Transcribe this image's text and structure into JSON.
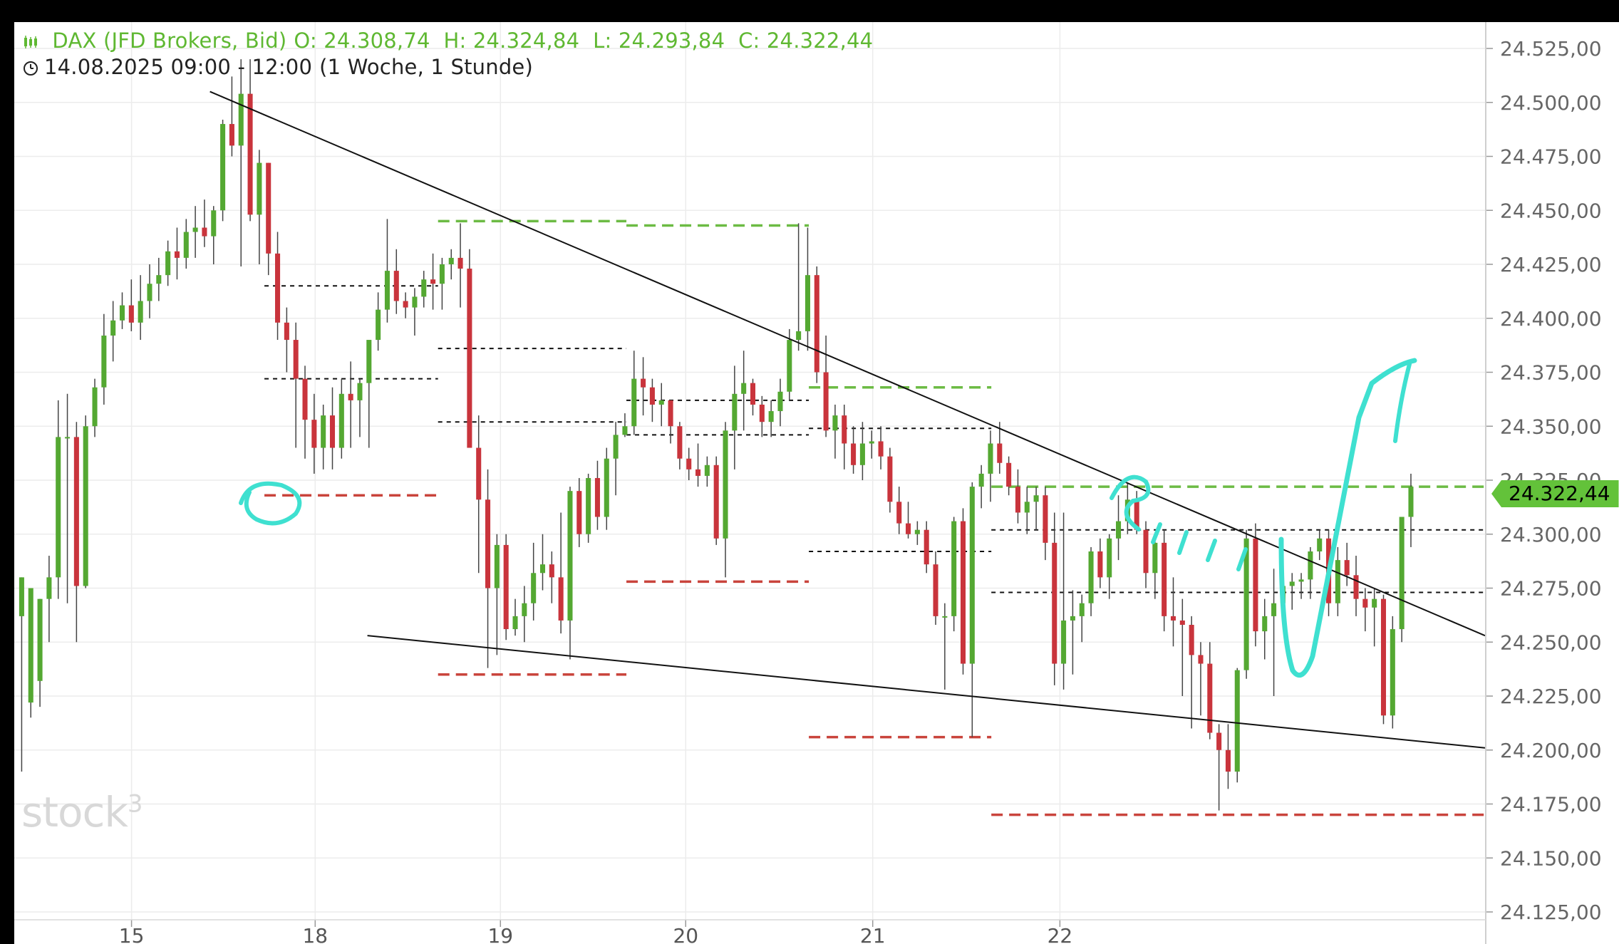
{
  "header": {
    "instrument": "DAX (JFD Brokers, Bid)",
    "ohlc": "O: 24.308,74  H: 24.324,84  L: 24.293,84  C: 24.322,44",
    "period": "14.08.2025 09:00 - 12:00",
    "timeframe": "(1 Woche, 1 Stunde)"
  },
  "watermark": "stock3",
  "last_price_label": "24.322,44",
  "colors": {
    "up": "#54a832",
    "down": "#c9343c",
    "green_level": "#6cbb44",
    "red_level": "#c9443c",
    "annotation": "#3fe0d0",
    "grid": "#ececec",
    "tag": "#63c23a"
  },
  "chart_data": {
    "type": "candlestick",
    "title": "",
    "ylim": [
      24115,
      24540
    ],
    "y_ticks": [
      "24.125,00",
      "24.150,00",
      "24.175,00",
      "24.200,00",
      "24.225,00",
      "24.250,00",
      "24.275,00",
      "24.300,00",
      "24.325,00",
      "24.350,00",
      "24.375,00",
      "24.400,00",
      "24.425,00",
      "24.450,00",
      "24.475,00",
      "24.500,00",
      "24.525,00"
    ],
    "y_tick_values": [
      24125,
      24150,
      24175,
      24200,
      24225,
      24250,
      24275,
      24300,
      24325,
      24350,
      24375,
      24400,
      24425,
      24450,
      24475,
      24500,
      24525
    ],
    "x_day_labels": [
      "15",
      "18",
      "19",
      "20",
      "21",
      "22"
    ],
    "days": [
      {
        "o": 24262,
        "h": 24280,
        "l": 24190,
        "c": 24280
      },
      {
        "o": 24222,
        "h": 24275,
        "l": 24215,
        "c": 24275
      },
      {
        "o": 24232,
        "h": 24270,
        "l": 24220,
        "c": 24270
      },
      {
        "o": 24270,
        "h": 24290,
        "l": 24250,
        "c": 24280
      },
      {
        "o": 24280,
        "h": 24362,
        "l": 24270,
        "c": 24345
      },
      {
        "o": 24345,
        "h": 24365,
        "l": 24268,
        "c": 24345
      },
      {
        "o": 24345,
        "h": 24352,
        "l": 24250,
        "c": 24276
      },
      {
        "o": 24276,
        "h": 24355,
        "l": 24275,
        "c": 24350
      },
      {
        "o": 24350,
        "h": 24372,
        "l": 24345,
        "c": 24368
      },
      {
        "o": 24368,
        "h": 24402,
        "l": 24360,
        "c": 24392
      },
      {
        "o": 24392,
        "h": 24408,
        "l": 24380,
        "c": 24399
      },
      {
        "o": 24399,
        "h": 24412,
        "l": 24395,
        "c": 24406
      },
      {
        "o": 24406,
        "h": 24418,
        "l": 24394,
        "c": 24398
      },
      {
        "o": 24398,
        "h": 24420,
        "l": 24390,
        "c": 24408
      },
      {
        "o": 24408,
        "h": 24425,
        "l": 24400,
        "c": 24416
      },
      {
        "o": 24416,
        "h": 24428,
        "l": 24408,
        "c": 24420
      },
      {
        "o": 24420,
        "h": 24436,
        "l": 24415,
        "c": 24431
      },
      {
        "o": 24431,
        "h": 24442,
        "l": 24418,
        "c": 24428
      },
      {
        "o": 24428,
        "h": 24446,
        "l": 24423,
        "c": 24440
      },
      {
        "o": 24440,
        "h": 24452,
        "l": 24428,
        "c": 24442
      },
      {
        "o": 24442,
        "h": 24455,
        "l": 24433,
        "c": 24438
      },
      {
        "o": 24438,
        "h": 24452,
        "l": 24425,
        "c": 24450
      },
      {
        "o": 24450,
        "h": 24492,
        "l": 24445,
        "c": 24490
      },
      {
        "o": 24490,
        "h": 24512,
        "l": 24475,
        "c": 24480
      },
      {
        "o": 24480,
        "h": 24520,
        "l": 24424,
        "c": 24504
      },
      {
        "o": 24504,
        "h": 24520,
        "l": 24445,
        "c": 24448
      },
      {
        "o": 24448,
        "h": 24478,
        "l": 24425,
        "c": 24472
      },
      {
        "o": 24472,
        "h": 24472,
        "l": 24420,
        "c": 24430
      },
      {
        "o": 24430,
        "h": 24440,
        "l": 24390,
        "c": 24398
      },
      {
        "o": 24398,
        "h": 24405,
        "l": 24375,
        "c": 24390
      },
      {
        "o": 24390,
        "h": 24398,
        "l": 24340,
        "c": 24372
      },
      {
        "o": 24372,
        "h": 24378,
        "l": 24335,
        "c": 24353
      },
      {
        "o": 24353,
        "h": 24365,
        "l": 24328,
        "c": 24340
      },
      {
        "o": 24340,
        "h": 24360,
        "l": 24330,
        "c": 24355
      },
      {
        "o": 24355,
        "h": 24368,
        "l": 24330,
        "c": 24340
      },
      {
        "o": 24340,
        "h": 24372,
        "l": 24335,
        "c": 24365
      },
      {
        "o": 24365,
        "h": 24380,
        "l": 24340,
        "c": 24362
      },
      {
        "o": 24362,
        "h": 24372,
        "l": 24345,
        "c": 24370
      },
      {
        "o": 24370,
        "h": 24372,
        "l": 24340,
        "c": 24390
      },
      {
        "o": 24390,
        "h": 24412,
        "l": 24385,
        "c": 24404
      },
      {
        "o": 24404,
        "h": 24446,
        "l": 24398,
        "c": 24422
      },
      {
        "o": 24422,
        "h": 24432,
        "l": 24402,
        "c": 24408
      },
      {
        "o": 24408,
        "h": 24412,
        "l": 24400,
        "c": 24405
      },
      {
        "o": 24405,
        "h": 24414,
        "l": 24392,
        "c": 24410
      },
      {
        "o": 24410,
        "h": 24422,
        "l": 24405,
        "c": 24418
      },
      {
        "o": 24418,
        "h": 24430,
        "l": 24404,
        "c": 24416
      },
      {
        "o": 24416,
        "h": 24428,
        "l": 24404,
        "c": 24425
      },
      {
        "o": 24425,
        "h": 24432,
        "l": 24418,
        "c": 24428
      },
      {
        "o": 24428,
        "h": 24444,
        "l": 24405,
        "c": 24423
      },
      {
        "o": 24423,
        "h": 24432,
        "l": 24340,
        "c": 24340
      },
      {
        "o": 24340,
        "h": 24355,
        "l": 24282,
        "c": 24316
      },
      {
        "o": 24316,
        "h": 24330,
        "l": 24238,
        "c": 24275
      },
      {
        "o": 24275,
        "h": 24300,
        "l": 24244,
        "c": 24295
      },
      {
        "o": 24295,
        "h": 24300,
        "l": 24251,
        "c": 24256
      },
      {
        "o": 24256,
        "h": 24270,
        "l": 24253,
        "c": 24262
      },
      {
        "o": 24262,
        "h": 24276,
        "l": 24250,
        "c": 24268
      },
      {
        "o": 24268,
        "h": 24296,
        "l": 24260,
        "c": 24282
      },
      {
        "o": 24282,
        "h": 24300,
        "l": 24274,
        "c": 24286
      },
      {
        "o": 24286,
        "h": 24292,
        "l": 24268,
        "c": 24280
      },
      {
        "o": 24280,
        "h": 24310,
        "l": 24254,
        "c": 24260
      },
      {
        "o": 24260,
        "h": 24322,
        "l": 24242,
        "c": 24320
      },
      {
        "o": 24320,
        "h": 24326,
        "l": 24294,
        "c": 24300
      },
      {
        "o": 24300,
        "h": 24328,
        "l": 24296,
        "c": 24326
      },
      {
        "o": 24326,
        "h": 24334,
        "l": 24302,
        "c": 24308
      },
      {
        "o": 24308,
        "h": 24340,
        "l": 24302,
        "c": 24335
      },
      {
        "o": 24335,
        "h": 24352,
        "l": 24318,
        "c": 24346
      },
      {
        "o": 24346,
        "h": 24356,
        "l": 24345,
        "c": 24350
      },
      {
        "o": 24350,
        "h": 24385,
        "l": 24346,
        "c": 24372
      },
      {
        "o": 24372,
        "h": 24382,
        "l": 24355,
        "c": 24368
      },
      {
        "o": 24368,
        "h": 24372,
        "l": 24352,
        "c": 24360
      },
      {
        "o": 24360,
        "h": 24370,
        "l": 24350,
        "c": 24362
      },
      {
        "o": 24362,
        "h": 24362,
        "l": 24342,
        "c": 24350
      },
      {
        "o": 24350,
        "h": 24352,
        "l": 24330,
        "c": 24335
      },
      {
        "o": 24335,
        "h": 24340,
        "l": 24325,
        "c": 24330
      },
      {
        "o": 24330,
        "h": 24342,
        "l": 24322,
        "c": 24327
      },
      {
        "o": 24327,
        "h": 24336,
        "l": 24322,
        "c": 24332
      },
      {
        "o": 24332,
        "h": 24336,
        "l": 24295,
        "c": 24298
      },
      {
        "o": 24298,
        "h": 24352,
        "l": 24280,
        "c": 24348
      },
      {
        "o": 24348,
        "h": 24378,
        "l": 24330,
        "c": 24365
      },
      {
        "o": 24365,
        "h": 24385,
        "l": 24348,
        "c": 24370
      },
      {
        "o": 24370,
        "h": 24372,
        "l": 24355,
        "c": 24360
      },
      {
        "o": 24360,
        "h": 24364,
        "l": 24345,
        "c": 24352
      },
      {
        "o": 24352,
        "h": 24362,
        "l": 24345,
        "c": 24357
      },
      {
        "o": 24357,
        "h": 24372,
        "l": 24350,
        "c": 24366
      },
      {
        "o": 24366,
        "h": 24395,
        "l": 24362,
        "c": 24390
      },
      {
        "o": 24390,
        "h": 24444,
        "l": 24385,
        "c": 24394
      },
      {
        "o": 24394,
        "h": 24442,
        "l": 24385,
        "c": 24420
      },
      {
        "o": 24420,
        "h": 24424,
        "l": 24370,
        "c": 24375
      },
      {
        "o": 24375,
        "h": 24392,
        "l": 24345,
        "c": 24348
      },
      {
        "o": 24348,
        "h": 24360,
        "l": 24335,
        "c": 24355
      },
      {
        "o": 24355,
        "h": 24360,
        "l": 24330,
        "c": 24342
      },
      {
        "o": 24342,
        "h": 24350,
        "l": 24328,
        "c": 24332
      },
      {
        "o": 24332,
        "h": 24352,
        "l": 24325,
        "c": 24342
      },
      {
        "o": 24342,
        "h": 24348,
        "l": 24335,
        "c": 24343
      },
      {
        "o": 24343,
        "h": 24350,
        "l": 24330,
        "c": 24336
      },
      {
        "o": 24336,
        "h": 24340,
        "l": 24310,
        "c": 24315
      },
      {
        "o": 24315,
        "h": 24322,
        "l": 24300,
        "c": 24305
      },
      {
        "o": 24305,
        "h": 24315,
        "l": 24298,
        "c": 24300
      },
      {
        "o": 24300,
        "h": 24306,
        "l": 24295,
        "c": 24302
      },
      {
        "o": 24302,
        "h": 24306,
        "l": 24282,
        "c": 24286
      },
      {
        "o": 24286,
        "h": 24292,
        "l": 24258,
        "c": 24262
      },
      {
        "o": 24262,
        "h": 24268,
        "l": 24228,
        "c": 24262
      },
      {
        "o": 24262,
        "h": 24308,
        "l": 24255,
        "c": 24306
      },
      {
        "o": 24306,
        "h": 24312,
        "l": 24235,
        "c": 24240
      },
      {
        "o": 24240,
        "h": 24324,
        "l": 24206,
        "c": 24322
      },
      {
        "o": 24322,
        "h": 24332,
        "l": 24312,
        "c": 24328
      },
      {
        "o": 24328,
        "h": 24348,
        "l": 24315,
        "c": 24342
      },
      {
        "o": 24342,
        "h": 24352,
        "l": 24328,
        "c": 24333
      },
      {
        "o": 24333,
        "h": 24336,
        "l": 24318,
        "c": 24322
      },
      {
        "o": 24322,
        "h": 24330,
        "l": 24305,
        "c": 24310
      },
      {
        "o": 24310,
        "h": 24322,
        "l": 24300,
        "c": 24315
      },
      {
        "o": 24315,
        "h": 24322,
        "l": 24302,
        "c": 24318
      },
      {
        "o": 24318,
        "h": 24322,
        "l": 24288,
        "c": 24296
      },
      {
        "o": 24296,
        "h": 24310,
        "l": 24230,
        "c": 24240
      },
      {
        "o": 24240,
        "h": 24310,
        "l": 24228,
        "c": 24260
      },
      {
        "o": 24260,
        "h": 24274,
        "l": 24235,
        "c": 24262
      },
      {
        "o": 24262,
        "h": 24272,
        "l": 24250,
        "c": 24268
      },
      {
        "o": 24268,
        "h": 24294,
        "l": 24262,
        "c": 24292
      },
      {
        "o": 24292,
        "h": 24298,
        "l": 24275,
        "c": 24280
      },
      {
        "o": 24280,
        "h": 24300,
        "l": 24270,
        "c": 24298
      },
      {
        "o": 24298,
        "h": 24318,
        "l": 24288,
        "c": 24306
      },
      {
        "o": 24306,
        "h": 24324,
        "l": 24300,
        "c": 24316
      },
      {
        "o": 24316,
        "h": 24320,
        "l": 24300,
        "c": 24302
      },
      {
        "o": 24302,
        "h": 24306,
        "l": 24275,
        "c": 24282
      },
      {
        "o": 24282,
        "h": 24300,
        "l": 24270,
        "c": 24296
      },
      {
        "o": 24296,
        "h": 24302,
        "l": 24255,
        "c": 24262
      },
      {
        "o": 24262,
        "h": 24280,
        "l": 24248,
        "c": 24260
      },
      {
        "o": 24260,
        "h": 24270,
        "l": 24225,
        "c": 24258
      },
      {
        "o": 24258,
        "h": 24262,
        "l": 24210,
        "c": 24244
      },
      {
        "o": 24244,
        "h": 24250,
        "l": 24216,
        "c": 24240
      },
      {
        "o": 24240,
        "h": 24250,
        "l": 24205,
        "c": 24208
      },
      {
        "o": 24208,
        "h": 24212,
        "l": 24172,
        "c": 24200
      },
      {
        "o": 24200,
        "h": 24212,
        "l": 24182,
        "c": 24190
      },
      {
        "o": 24190,
        "h": 24238,
        "l": 24185,
        "c": 24237
      },
      {
        "o": 24237,
        "h": 24302,
        "l": 24233,
        "c": 24298
      },
      {
        "o": 24298,
        "h": 24305,
        "l": 24248,
        "c": 24255
      },
      {
        "o": 24255,
        "h": 24270,
        "l": 24242,
        "c": 24262
      },
      {
        "o": 24262,
        "h": 24284,
        "l": 24225,
        "c": 24268
      },
      {
        "o": 24268,
        "h": 24280,
        "l": 24260,
        "c": 24276
      },
      {
        "o": 24276,
        "h": 24282,
        "l": 24265,
        "c": 24278
      },
      {
        "o": 24278,
        "h": 24282,
        "l": 24270,
        "c": 24279
      },
      {
        "o": 24279,
        "h": 24294,
        "l": 24270,
        "c": 24292
      },
      {
        "o": 24292,
        "h": 24302,
        "l": 24288,
        "c": 24298
      },
      {
        "o": 24298,
        "h": 24302,
        "l": 24262,
        "c": 24268
      },
      {
        "o": 24268,
        "h": 24294,
        "l": 24262,
        "c": 24288
      },
      {
        "o": 24288,
        "h": 24296,
        "l": 24276,
        "c": 24281
      },
      {
        "o": 24281,
        "h": 24290,
        "l": 24262,
        "c": 24270
      },
      {
        "o": 24270,
        "h": 24275,
        "l": 24255,
        "c": 24266
      },
      {
        "o": 24266,
        "h": 24275,
        "l": 24248,
        "c": 24270
      },
      {
        "o": 24270,
        "h": 24272,
        "l": 24212,
        "c": 24216
      },
      {
        "o": 24216,
        "h": 24262,
        "l": 24210,
        "c": 24256
      },
      {
        "o": 24256,
        "h": 24295,
        "l": 24250,
        "c": 24308
      },
      {
        "o": 24308,
        "h": 24328,
        "l": 24294,
        "c": 24322
      }
    ],
    "trend_lines": [
      {
        "t0": 0.133,
        "p0": 24505,
        "t1": 0.9995,
        "p1": 24253
      },
      {
        "t0": 0.24,
        "p0": 24253,
        "t1": 0.9995,
        "p1": 24201
      }
    ],
    "levels": [
      {
        "kind": "resistance",
        "t0": 0.288,
        "t1": 0.416,
        "price": 24445
      },
      {
        "kind": "resistance",
        "t0": 0.416,
        "t1": 0.54,
        "price": 24443
      },
      {
        "kind": "resistance",
        "t0": 0.54,
        "t1": 0.664,
        "price": 24368
      },
      {
        "kind": "resistance",
        "t0": 0.664,
        "t1": 0.9995,
        "price": 24322
      },
      {
        "kind": "support",
        "t0": 0.17,
        "t1": 0.288,
        "price": 24318
      },
      {
        "kind": "support",
        "t0": 0.288,
        "t1": 0.416,
        "price": 24235
      },
      {
        "kind": "support",
        "t0": 0.416,
        "t1": 0.54,
        "price": 24278
      },
      {
        "kind": "support",
        "t0": 0.54,
        "t1": 0.664,
        "price": 24206
      },
      {
        "kind": "support",
        "t0": 0.664,
        "t1": 0.9995,
        "price": 24170
      },
      {
        "kind": "pivot",
        "t0": 0.17,
        "t1": 0.288,
        "price": 24415
      },
      {
        "kind": "pivot",
        "t0": 0.17,
        "t1": 0.288,
        "price": 24372
      },
      {
        "kind": "pivot",
        "t0": 0.288,
        "t1": 0.416,
        "price": 24386
      },
      {
        "kind": "pivot",
        "t0": 0.288,
        "t1": 0.416,
        "price": 24352
      },
      {
        "kind": "pivot",
        "t0": 0.416,
        "t1": 0.54,
        "price": 24362
      },
      {
        "kind": "pivot",
        "t0": 0.416,
        "t1": 0.54,
        "price": 24346
      },
      {
        "kind": "pivot",
        "t0": 0.54,
        "t1": 0.664,
        "price": 24349
      },
      {
        "kind": "pivot",
        "t0": 0.54,
        "t1": 0.664,
        "price": 24292
      },
      {
        "kind": "pivot",
        "t0": 0.664,
        "t1": 0.9995,
        "price": 24302
      },
      {
        "kind": "pivot",
        "t0": 0.664,
        "t1": 0.9995,
        "price": 24273
      }
    ],
    "annotations": [
      "circle near day 18 low",
      "wave marks at breakout",
      "hand-drawn upward V arrow"
    ]
  }
}
